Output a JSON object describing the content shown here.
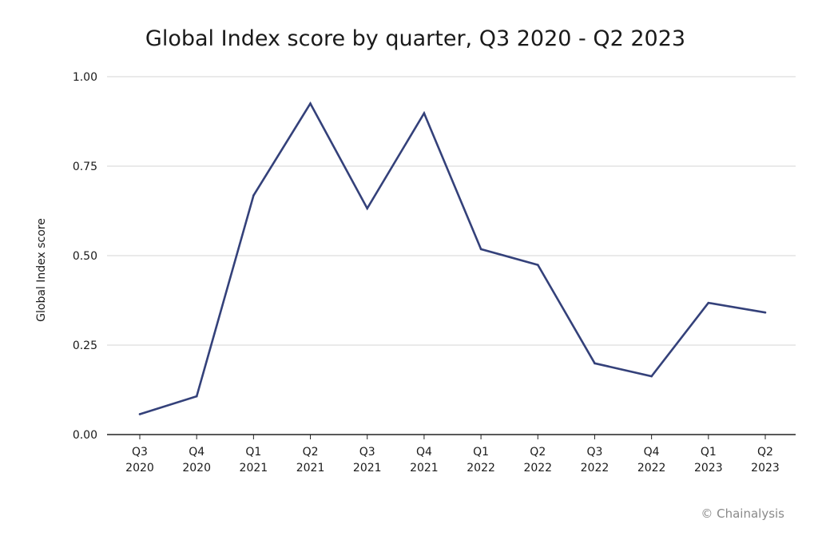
{
  "chart_data": {
    "type": "line",
    "title": "Global Index score by quarter, Q3 2020 - Q2 2023",
    "xlabel": "",
    "ylabel": "Global Index score",
    "categories": [
      [
        "Q3",
        "2020"
      ],
      [
        "Q4",
        "2020"
      ],
      [
        "Q1",
        "2021"
      ],
      [
        "Q2",
        "2021"
      ],
      [
        "Q3",
        "2021"
      ],
      [
        "Q4",
        "2021"
      ],
      [
        "Q1",
        "2022"
      ],
      [
        "Q2",
        "2022"
      ],
      [
        "Q3",
        "2022"
      ],
      [
        "Q4",
        "2022"
      ],
      [
        "Q1",
        "2023"
      ],
      [
        "Q2",
        "2023"
      ]
    ],
    "series": [
      {
        "values": [
          0.057,
          0.107,
          0.668,
          0.925,
          0.632,
          0.898,
          0.518,
          0.474,
          0.199,
          0.163,
          0.368,
          0.341
        ],
        "color": "#34417a"
      }
    ],
    "ylim": [
      0,
      1
    ],
    "yticks": [
      "0.00",
      "0.25",
      "0.50",
      "0.75",
      "1.00"
    ],
    "ytick_values": [
      0,
      0.25,
      0.5,
      0.75,
      1
    ],
    "grid": true,
    "legend": "none"
  },
  "credit": "© Chainalysis"
}
